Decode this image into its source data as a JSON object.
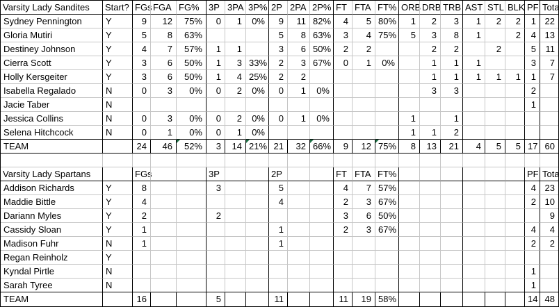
{
  "sheet": {
    "column_ids": [
      "player",
      "start",
      "fgs",
      "fga",
      "fg_pct",
      "3p",
      "3pa",
      "3p_pct",
      "2p",
      "2pa",
      "2p_pct",
      "ft",
      "fta",
      "ft_pct",
      "orb",
      "drb",
      "trb",
      "ast",
      "stl",
      "blk",
      "pf",
      "total"
    ],
    "tables": [
      {
        "title": "Varsity Lady Sandites",
        "headers": [
          "Varsity Lady Sandites",
          "Start?",
          "FGs",
          "FGA",
          "FG%",
          "3P",
          "3PA",
          "3P%",
          "2P",
          "2PA",
          "2P%",
          "FT",
          "FTA",
          "FT%",
          "ORB",
          "DRB",
          "TRB",
          "AST",
          "STL",
          "BLK",
          "PF",
          "Total"
        ],
        "rows": [
          [
            "Sydney Pennington",
            "Y",
            "9",
            "12",
            "75%",
            "0",
            "1",
            "0%",
            "9",
            "11",
            "82%",
            "4",
            "5",
            "80%",
            "1",
            "2",
            "3",
            "1",
            "2",
            "2",
            "1",
            "22"
          ],
          [
            "Gloria Mutiri",
            "Y",
            "5",
            "8",
            "63%",
            "",
            "",
            "",
            "5",
            "8",
            "63%",
            "3",
            "4",
            "75%",
            "5",
            "3",
            "8",
            "1",
            "",
            "2",
            "4",
            "13"
          ],
          [
            "Destiney Johnson",
            "Y",
            "4",
            "7",
            "57%",
            "1",
            "1",
            "",
            "3",
            "6",
            "50%",
            "2",
            "2",
            "",
            "",
            "2",
            "2",
            "",
            "2",
            "",
            "5",
            "11"
          ],
          [
            "Cierra Scott",
            "Y",
            "3",
            "6",
            "50%",
            "1",
            "3",
            "33%",
            "2",
            "3",
            "67%",
            "0",
            "1",
            "0%",
            "",
            "1",
            "1",
            "1",
            "",
            "",
            "3",
            "7"
          ],
          [
            "Holly Kersgeiter",
            "Y",
            "3",
            "6",
            "50%",
            "1",
            "4",
            "25%",
            "2",
            "2",
            "",
            "",
            "",
            "",
            "",
            "1",
            "1",
            "1",
            "1",
            "1",
            "1",
            "7"
          ],
          [
            "Isabella Regalado",
            "N",
            "0",
            "3",
            "0%",
            "0",
            "2",
            "0%",
            "0",
            "1",
            "0%",
            "",
            "",
            "",
            "",
            "3",
            "3",
            "",
            "",
            "",
            "2",
            ""
          ],
          [
            "Jacie Taber",
            "N",
            "",
            "",
            "",
            "",
            "",
            "",
            "",
            "",
            "",
            "",
            "",
            "",
            "",
            "",
            "",
            "",
            "",
            "",
            "1",
            ""
          ],
          [
            "Jessica Collins",
            "N",
            "0",
            "3",
            "0%",
            "0",
            "2",
            "0%",
            "0",
            "1",
            "0%",
            "",
            "",
            "",
            "1",
            "",
            "1",
            "",
            "",
            "",
            "",
            ""
          ],
          [
            "Selena Hitchcock",
            "N",
            "0",
            "1",
            "0%",
            "0",
            "1",
            "0%",
            "",
            "",
            "",
            "",
            "",
            "",
            "1",
            "1",
            "2",
            "",
            "",
            "",
            "",
            ""
          ]
        ],
        "team": [
          "TEAM",
          "",
          "24",
          "46",
          "52%",
          "3",
          "14",
          "21%",
          "21",
          "32",
          "66%",
          "9",
          "12",
          "75%",
          "8",
          "13",
          "21",
          "4",
          "5",
          "5",
          "17",
          "60"
        ],
        "error_indicator_columns": [
          "fg_pct",
          "3p_pct",
          "2p_pct",
          "ft_pct"
        ]
      },
      {
        "title": "Varsity Lady Spartans",
        "headers": [
          "Varsity Lady Spartans",
          "",
          "FGs",
          "",
          "",
          "3P",
          "",
          "",
          "2P",
          "",
          "",
          "FT",
          "FTA",
          "FT%",
          "",
          "",
          "",
          "",
          "",
          "",
          "PF",
          "Total"
        ],
        "rows": [
          [
            "Addison Richards",
            "Y",
            "8",
            "",
            "",
            "3",
            "",
            "",
            "5",
            "",
            "",
            "4",
            "7",
            "57%",
            "",
            "",
            "",
            "",
            "",
            "",
            "4",
            "23"
          ],
          [
            "Maddie Bittle",
            "Y",
            "4",
            "",
            "",
            "",
            "",
            "",
            "4",
            "",
            "",
            "2",
            "3",
            "67%",
            "",
            "",
            "",
            "",
            "",
            "",
            "2",
            "10"
          ],
          [
            "Dariann Myles",
            "Y",
            "2",
            "",
            "",
            "2",
            "",
            "",
            "",
            "",
            "",
            "3",
            "6",
            "50%",
            "",
            "",
            "",
            "",
            "",
            "",
            "",
            "9"
          ],
          [
            "Cassidy Sloan",
            "Y",
            "1",
            "",
            "",
            "",
            "",
            "",
            "1",
            "",
            "",
            "2",
            "3",
            "67%",
            "",
            "",
            "",
            "",
            "",
            "",
            "4",
            "4"
          ],
          [
            "Madison Fuhr",
            "N",
            "1",
            "",
            "",
            "",
            "",
            "",
            "1",
            "",
            "",
            "",
            "",
            "",
            "",
            "",
            "",
            "",
            "",
            "",
            "2",
            "2"
          ],
          [
            "Regan Reinholz",
            "Y",
            "",
            "",
            "",
            "",
            "",
            "",
            "",
            "",
            "",
            "",
            "",
            "",
            "",
            "",
            "",
            "",
            "",
            "",
            "",
            ""
          ],
          [
            "Kyndal Pirtle",
            "N",
            "",
            "",
            "",
            "",
            "",
            "",
            "",
            "",
            "",
            "",
            "",
            "",
            "",
            "",
            "",
            "",
            "",
            "",
            "1",
            ""
          ],
          [
            "Sarah Tyree",
            "N",
            "",
            "",
            "",
            "",
            "",
            "",
            "",
            "",
            "",
            "",
            "",
            "",
            "",
            "",
            "",
            "",
            "",
            "",
            "1",
            ""
          ]
        ],
        "team": [
          "TEAM",
          "",
          "16",
          "",
          "",
          "5",
          "",
          "",
          "11",
          "",
          "",
          "11",
          "19",
          "58%",
          "",
          "",
          "",
          "",
          "",
          "",
          "14",
          "48"
        ],
        "error_indicator_columns": []
      }
    ]
  },
  "colors": {
    "gridline": "#c6c6c6",
    "group_border": "#000000",
    "error_indicator": "#1e7145",
    "background": "#ffffff",
    "text": "#000000"
  }
}
